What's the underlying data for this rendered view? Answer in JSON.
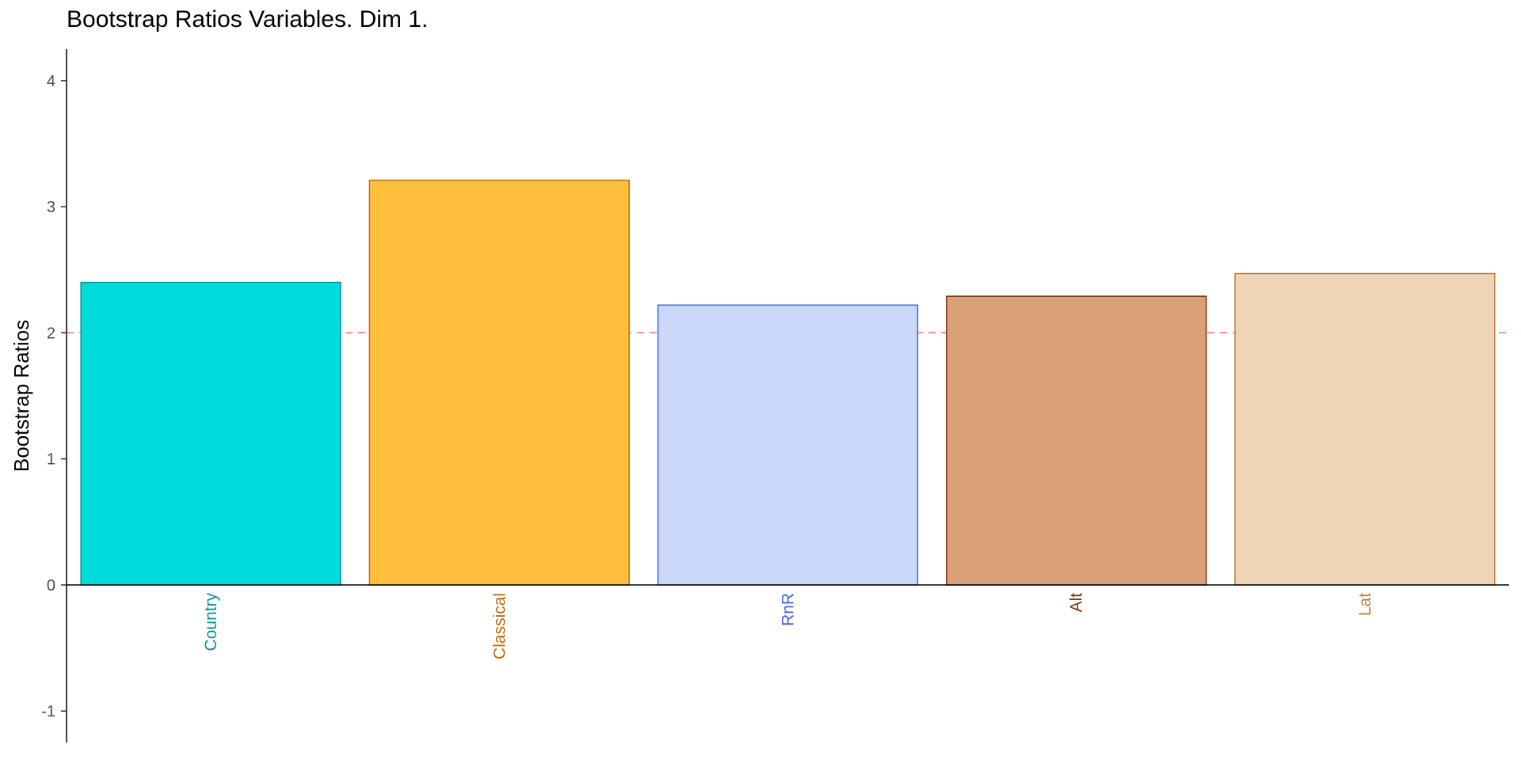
{
  "chart_data": {
    "type": "bar",
    "title": "Bootstrap Ratios Variables. Dim 1.",
    "xlabel": "",
    "ylabel": "Bootstrap Ratios",
    "ylim": [
      -1.25,
      4.25
    ],
    "yticks": [
      -1,
      0,
      1,
      2,
      3,
      4
    ],
    "threshold": 2,
    "threshold_color": "#ff6b6b",
    "grid": false,
    "categories": [
      "Country",
      "Classical",
      "RnR",
      "Alt",
      "Lat"
    ],
    "values": [
      2.4,
      3.21,
      2.22,
      2.29,
      2.47
    ],
    "fill_colors": [
      "#00dcdc",
      "#ffbe3c",
      "#cbd8fa",
      "#d9a178",
      "#efd5b8"
    ],
    "border_colors": [
      "#0a8f8f",
      "#c06a08",
      "#4063e0",
      "#7a3010",
      "#c87a30"
    ],
    "label_colors": [
      "#0a8f8f",
      "#c06a08",
      "#4063e0",
      "#7a3010",
      "#c87a30"
    ]
  }
}
